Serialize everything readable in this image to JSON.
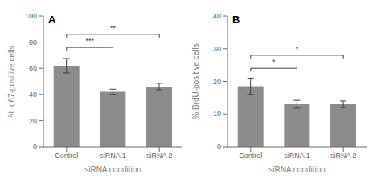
{
  "chart_data": [
    {
      "type": "bar",
      "title": "A",
      "categories": [
        "Control",
        "siRNA 1",
        "siRNA 2"
      ],
      "values": [
        62,
        42,
        46
      ],
      "errors": [
        5.5,
        2.0,
        2.5
      ],
      "xlabel": "siRNA condition",
      "ylabel": "% ki67-positive cells",
      "ylim": [
        0,
        100
      ],
      "yticks": [
        0,
        20,
        40,
        60,
        80,
        100
      ],
      "color": "#8c8c8c",
      "annotations": [
        {
          "x1": "Control",
          "x2": "siRNA 1",
          "y": 76,
          "label": "***"
        },
        {
          "x1": "Control",
          "x2": "siRNA 2",
          "y": 86,
          "label": "**"
        }
      ]
    },
    {
      "type": "bar",
      "title": "B",
      "categories": [
        "Control",
        "siRNA 1",
        "siRNA 2"
      ],
      "values": [
        18.5,
        13,
        13
      ],
      "errors": [
        2.5,
        1.2,
        1.0
      ],
      "xlabel": "siRNA condition",
      "ylabel": "% BrdU-positive cells",
      "ylim": [
        0,
        40
      ],
      "yticks": [
        0,
        10,
        20,
        30,
        40
      ],
      "color": "#8c8c8c",
      "annotations": [
        {
          "x1": "Control",
          "x2": "siRNA 1",
          "y": 24,
          "label": "*"
        },
        {
          "x1": "Control",
          "x2": "siRNA 2",
          "y": 28,
          "label": "*"
        }
      ]
    }
  ]
}
